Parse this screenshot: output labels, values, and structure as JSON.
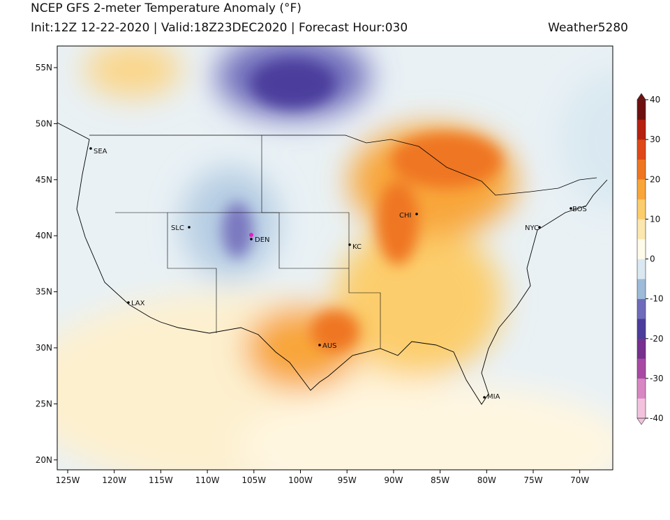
{
  "header": {
    "title": "NCEP GFS 2-meter Temperature Anomaly (°F)",
    "subtitle": "Init:12Z 12-22-2020 | Valid:18Z23DEC2020 | Forecast Hour:030",
    "credit": "Weather5280"
  },
  "map": {
    "lon_ticks": [
      "125W",
      "120W",
      "115W",
      "110W",
      "105W",
      "100W",
      "95W",
      "90W",
      "85W",
      "80W",
      "75W",
      "70W"
    ],
    "lat_ticks": [
      "55N",
      "50N",
      "45N",
      "40N",
      "35N",
      "30N",
      "25N",
      "20N"
    ],
    "cities": [
      "SEA",
      "SLC",
      "DEN",
      "LAX",
      "KC",
      "CHI",
      "NYC",
      "BOS",
      "AUS",
      "MIA"
    ]
  },
  "colorbar": {
    "ticks": [
      40,
      30,
      20,
      10,
      0,
      -10,
      -20,
      -30,
      -40
    ],
    "colors": [
      "#f3c3de",
      "#d986c4",
      "#a84aa4",
      "#76308e",
      "#4c3c9c",
      "#6e6cba",
      "#9dbbd9",
      "#dae9f1",
      "#fffbea",
      "#fde7b0",
      "#fccd6c",
      "#f8a63a",
      "#ef7620",
      "#de4818",
      "#b52010",
      "#6e1010"
    ]
  }
}
